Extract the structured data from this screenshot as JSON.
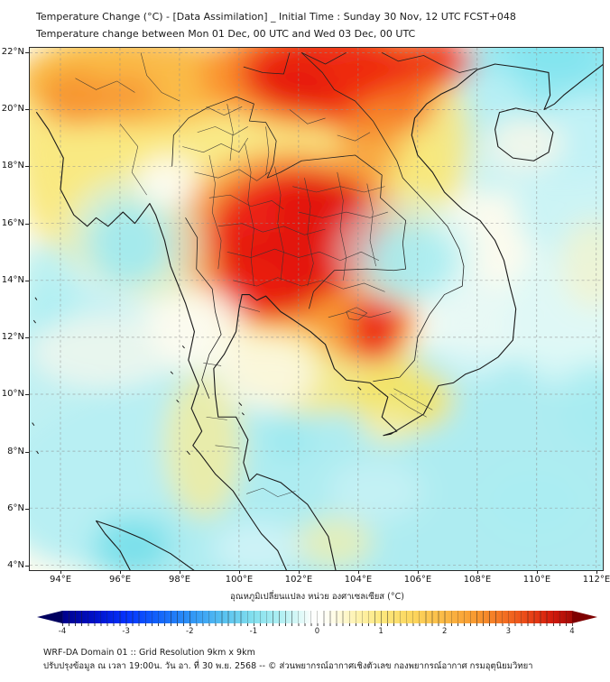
{
  "header": {
    "line1": "Temperature Change (°C) - [Data Assimilation] _ Initial Time : Sunday 30 Nov, 12 UTC FCST+048",
    "line2": "Temperature change between Mon 01 Dec, 00 UTC and Wed 03 Dec, 00 UTC"
  },
  "map": {
    "y_ticks": [
      "22°N",
      "20°N",
      "18°N",
      "16°N",
      "14°N",
      "12°N",
      "10°N",
      "8°N",
      "6°N",
      "4°N"
    ],
    "x_ticks": [
      "94°E",
      "96°E",
      "98°E",
      "100°E",
      "102°E",
      "104°E",
      "106°E",
      "108°E",
      "110°E",
      "112°E"
    ]
  },
  "colorbar": {
    "title": "อุณหภูมิเปลี่ยนแปลง หน่วย องศาเซลเซียส (°C)",
    "tick_labels": [
      "-4",
      "-3",
      "-2",
      "-1",
      "0",
      "1",
      "2",
      "3",
      "4"
    ],
    "tick_values": [
      -4,
      -3,
      -2,
      -1,
      0,
      1,
      2,
      3,
      4
    ],
    "range": [
      -4,
      4
    ],
    "under_color": "#00005F",
    "over_color": "#7E0000",
    "stops": [
      [
        -4.0,
        "#00008B"
      ],
      [
        -3.5,
        "#0010C8"
      ],
      [
        -3.0,
        "#0433FF"
      ],
      [
        -2.5,
        "#1263FA"
      ],
      [
        -2.0,
        "#2E93F7"
      ],
      [
        -1.5,
        "#55BFF0"
      ],
      [
        -1.0,
        "#83E0EE"
      ],
      [
        -0.6,
        "#ADEEF2"
      ],
      [
        -0.3,
        "#D8F8F7"
      ],
      [
        -0.08,
        "#FDFEFD"
      ],
      [
        0.08,
        "#FFFFFB"
      ],
      [
        0.3,
        "#FFFBE2"
      ],
      [
        0.6,
        "#FEF3B2"
      ],
      [
        1.0,
        "#FDE87E"
      ],
      [
        1.5,
        "#FCD65D"
      ],
      [
        2.0,
        "#FBB945"
      ],
      [
        2.5,
        "#F8982F"
      ],
      [
        3.0,
        "#F26921"
      ],
      [
        3.4,
        "#E63C14"
      ],
      [
        3.7,
        "#D1190C"
      ],
      [
        4.0,
        "#A30B06"
      ]
    ]
  },
  "footer": {
    "line1": "WRF-DA Domain 01 :: Grid Resolution 9km x 9km",
    "line2": "ปรับปรุงข้อมูล ณ เวลา 19:00น. วัน อา. ที่ 30 พ.ย. 2568 -- © ส่วนพยากรณ์อากาศเชิงตัวเลข กองพยากรณ์อากาศ กรมอุตุนิยมวิทยา"
  },
  "field_blobs": [
    [
      105.0,
      6.8,
      13.0,
      4.8,
      "#AEECF1",
      1.0
    ],
    [
      94.5,
      9.0,
      3.5,
      5.0,
      "#B9EFF3",
      0.9
    ],
    [
      95.5,
      11.5,
      2.5,
      1.3,
      "#FAF9EE",
      0.7
    ],
    [
      110.8,
      20.6,
      3.6,
      3.0,
      "#8FE8F1",
      0.95
    ],
    [
      110.6,
      21.9,
      1.5,
      0.8,
      "#7EE4EF",
      0.8
    ],
    [
      111.8,
      17.3,
      2.6,
      3.2,
      "#C6F3F6",
      0.9
    ],
    [
      108.3,
      19.2,
      1.6,
      2.2,
      "#BFF1F5",
      0.8
    ],
    [
      111.2,
      12.8,
      2.2,
      2.6,
      "#D8F7F8",
      0.8
    ],
    [
      99.8,
      17.6,
      7.2,
      4.6,
      "#F9E982",
      0.95
    ],
    [
      95.0,
      19.5,
      2.8,
      3.2,
      "#F9E982",
      0.9
    ],
    [
      102.6,
      11.9,
      3.4,
      2.6,
      "#F9E982",
      0.9
    ],
    [
      106.3,
      18.9,
      1.5,
      2.6,
      "#F8E77A",
      0.85
    ],
    [
      98.8,
      8.2,
      1.3,
      2.6,
      "#F6EC9A",
      0.8
    ],
    [
      105.5,
      9.8,
      1.7,
      1.2,
      "#F5E35F",
      0.9
    ],
    [
      103.2,
      4.8,
      1.3,
      0.9,
      "#F7EFA6",
      0.7
    ],
    [
      96.5,
      21.0,
      4.0,
      1.6,
      "#FBB640",
      0.9
    ],
    [
      94.5,
      20.4,
      1.2,
      1.0,
      "#F79130",
      0.85
    ],
    [
      96.3,
      20.5,
      0.9,
      0.8,
      "#F79130",
      0.7
    ],
    [
      102.9,
      21.2,
      4.2,
      1.9,
      "#FA8F2D",
      0.95
    ],
    [
      103.0,
      21.3,
      3.0,
      1.5,
      "#EE2A12",
      0.95
    ],
    [
      104.4,
      20.4,
      1.7,
      1.4,
      "#EE2A12",
      0.9
    ],
    [
      101.9,
      20.9,
      1.3,
      1.0,
      "#E51A0C",
      0.8
    ],
    [
      106.6,
      21.7,
      1.3,
      0.9,
      "#ED3415",
      0.85
    ],
    [
      105.5,
      20.0,
      1.1,
      0.9,
      "#F8892B",
      0.7
    ],
    [
      104.4,
      18.9,
      1.1,
      1.4,
      "#F89A31",
      0.75
    ],
    [
      101.8,
      15.4,
      4.0,
      3.2,
      "#F8872B",
      0.75
    ],
    [
      104.1,
      13.1,
      1.9,
      2.0,
      "#F8922E",
      0.8
    ],
    [
      101.9,
      15.6,
      2.9,
      2.3,
      "#EB1E10",
      0.95
    ],
    [
      101.1,
      14.2,
      1.9,
      1.5,
      "#E2140A",
      0.9
    ],
    [
      102.9,
      16.3,
      1.7,
      1.4,
      "#E2140A",
      0.85
    ],
    [
      100.4,
      13.7,
      1.2,
      1.1,
      "#EB1E10",
      0.85
    ],
    [
      104.6,
      12.3,
      0.95,
      1.2,
      "#EC2413",
      0.9
    ],
    [
      96.4,
      15.3,
      2.3,
      2.4,
      "#CFF4F6",
      0.6
    ],
    [
      96.3,
      15.3,
      1.35,
      1.45,
      "#9FEAF0",
      0.9
    ],
    [
      105.7,
      15.0,
      2.4,
      2.0,
      "#D2F5F7",
      0.6
    ],
    [
      105.8,
      14.7,
      1.5,
      1.3,
      "#A5ECF1",
      0.85
    ],
    [
      97.6,
      17.5,
      1.0,
      0.9,
      "#FFFFFF",
      0.8
    ],
    [
      98.6,
      12.3,
      1.6,
      1.5,
      "#FCFBF0",
      0.85
    ],
    [
      100.9,
      10.7,
      1.7,
      1.3,
      "#FBFAEE",
      0.8
    ],
    [
      109.6,
      18.8,
      1.3,
      0.95,
      "#FBF7E8",
      0.8
    ],
    [
      96.4,
      4.7,
      1.3,
      1.0,
      "#72DEE9",
      0.85
    ],
    [
      101.7,
      8.4,
      0.8,
      0.7,
      "#97E8EF",
      0.7
    ],
    [
      93.5,
      13.8,
      1.0,
      1.5,
      "#AEEFF3",
      0.8
    ],
    [
      109.9,
      6.2,
      1.7,
      1.3,
      "#A9EDF2",
      0.75
    ],
    [
      112.0,
      9.6,
      1.2,
      1.6,
      "#A5ECF1",
      0.7
    ],
    [
      104.6,
      6.6,
      1.6,
      1.1,
      "#C8F3F5",
      0.8
    ],
    [
      111.9,
      14.6,
      1.1,
      1.6,
      "#FAF2C2",
      0.6
    ],
    [
      105.0,
      8.9,
      0.9,
      0.7,
      "#F8F0AE",
      0.7
    ],
    [
      107.9,
      12.3,
      1.5,
      1.8,
      "#DFF8F8",
      0.7
    ],
    [
      100.6,
      4.6,
      1.5,
      0.9,
      "#D7F6F7",
      0.75
    ]
  ]
}
